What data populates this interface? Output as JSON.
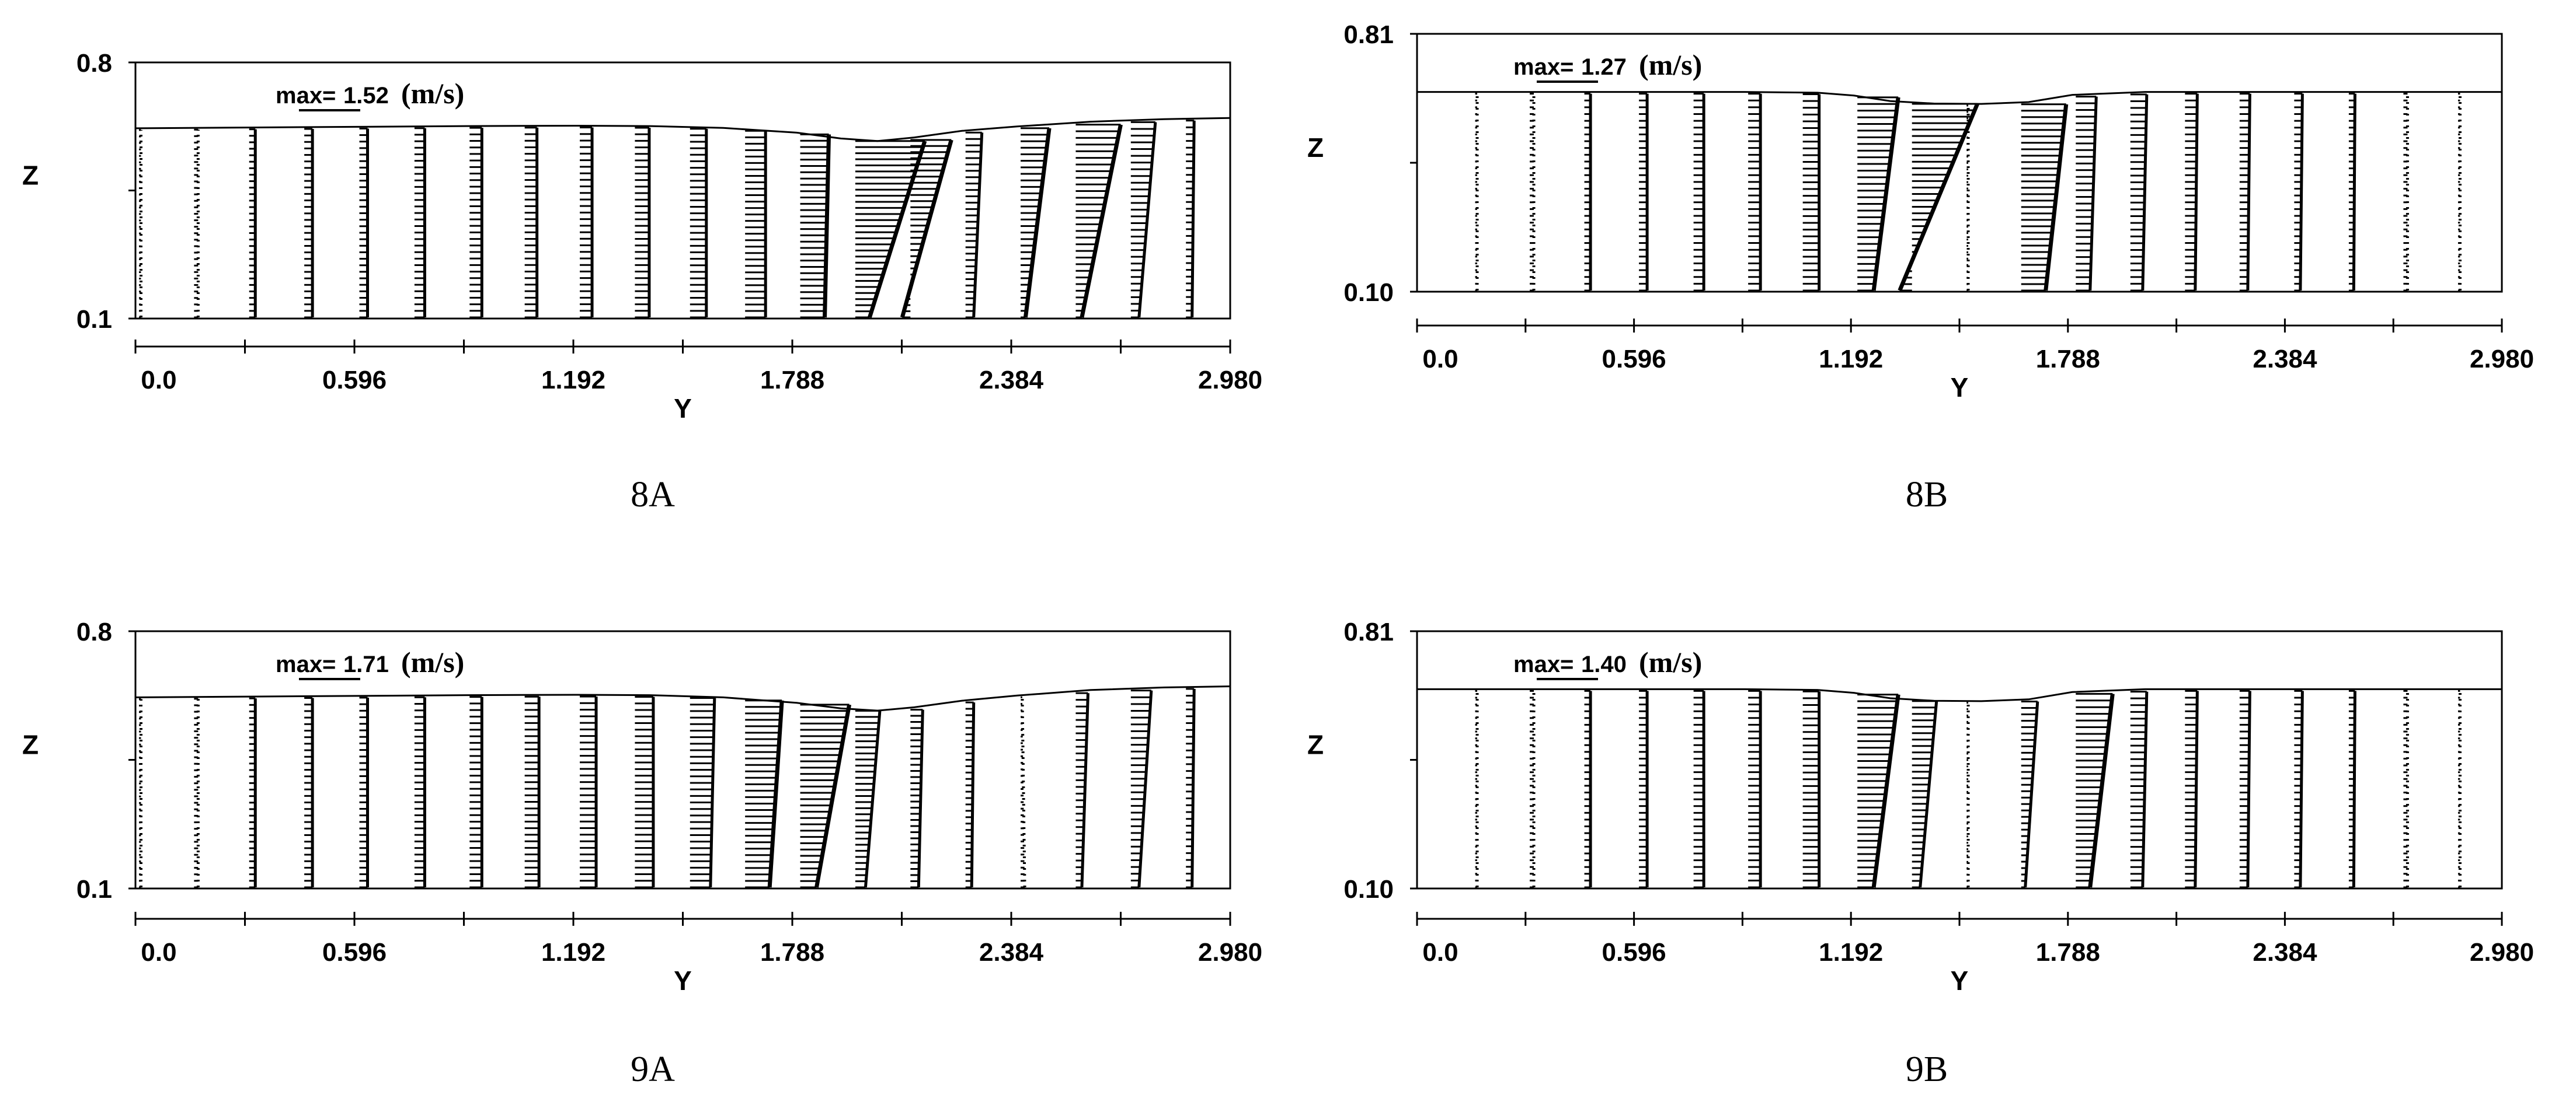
{
  "chart_data": [
    {
      "type": "vector_field",
      "panel": "8A",
      "caption": "8A",
      "xlabel": "Y",
      "ylabel": "Z",
      "xlim": [
        0.0,
        2.98
      ],
      "ylim": [
        0.1,
        0.8
      ],
      "xticks": [
        "0.0",
        "0.596",
        "1.192",
        "1.788",
        "2.384",
        "2.980"
      ],
      "yticks": [
        "0.8",
        "0.1"
      ],
      "reference_vector": {
        "prefix": "max=",
        "value": "1.52",
        "unit": "(m/s)"
      },
      "free_surface": {
        "y": [
          0.0,
          0.3,
          0.6,
          0.9,
          1.2,
          1.4,
          1.6,
          1.8,
          1.92,
          2.02,
          2.12,
          2.25,
          2.4,
          2.6,
          2.8,
          2.98
        ],
        "z": [
          0.62,
          0.622,
          0.624,
          0.626,
          0.627,
          0.626,
          0.621,
          0.608,
          0.592,
          0.585,
          0.595,
          0.613,
          0.625,
          0.638,
          0.645,
          0.648
        ]
      },
      "velocity_profiles": {
        "y": [
          0.0,
          0.15,
          0.3,
          0.45,
          0.6,
          0.75,
          0.9,
          1.05,
          1.2,
          1.35,
          1.5,
          1.65,
          1.8,
          1.95,
          2.1,
          2.25,
          2.4,
          2.55,
          2.7,
          2.85
        ],
        "u_top": [
          0.005,
          0.01,
          0.015,
          0.02,
          0.02,
          0.025,
          0.03,
          0.03,
          0.03,
          0.035,
          0.04,
          0.05,
          0.07,
          0.17,
          0.1,
          0.04,
          0.07,
          0.11,
          0.06,
          0.02
        ],
        "u_bottom": [
          0.005,
          0.01,
          0.015,
          0.02,
          0.02,
          0.025,
          0.03,
          0.03,
          0.03,
          0.035,
          0.04,
          0.05,
          0.06,
          0.035,
          -0.02,
          0.02,
          0.012,
          0.015,
          0.02,
          0.015
        ]
      }
    },
    {
      "type": "vector_field",
      "panel": "8B",
      "caption": "8B",
      "xlabel": "Y",
      "ylabel": "Z",
      "xlim": [
        0.0,
        2.98
      ],
      "ylim": [
        0.1,
        0.81
      ],
      "xticks": [
        "0.0",
        "0.596",
        "1.192",
        "1.788",
        "2.384",
        "2.980"
      ],
      "yticks": [
        "0.81",
        "0.10"
      ],
      "reference_vector": {
        "prefix": "max=",
        "value": "1.27",
        "unit": "(m/s)"
      },
      "free_surface": {
        "y": [
          0.0,
          0.3,
          0.6,
          0.9,
          1.1,
          1.2,
          1.3,
          1.42,
          1.55,
          1.68,
          1.8,
          2.0,
          2.3,
          2.6,
          2.98
        ],
        "z": [
          0.65,
          0.65,
          0.65,
          0.65,
          0.648,
          0.64,
          0.625,
          0.618,
          0.617,
          0.622,
          0.642,
          0.65,
          0.65,
          0.65,
          0.65
        ]
      },
      "velocity_profiles": {
        "y": [
          0.15,
          0.3,
          0.45,
          0.6,
          0.75,
          0.9,
          1.05,
          1.2,
          1.35,
          1.5,
          1.65,
          1.8,
          1.95,
          2.1,
          2.25,
          2.4,
          2.55,
          2.7,
          2.85
        ],
        "u_top": [
          0.005,
          0.01,
          0.015,
          0.02,
          0.025,
          0.03,
          0.04,
          0.1,
          0.16,
          0.004,
          0.11,
          0.05,
          0.04,
          0.03,
          0.025,
          0.02,
          0.015,
          0.01,
          0.005
        ],
        "u_bottom": [
          0.005,
          0.01,
          0.015,
          0.02,
          0.025,
          0.03,
          0.04,
          0.04,
          -0.03,
          0.004,
          0.06,
          0.035,
          0.03,
          0.025,
          0.02,
          0.015,
          0.012,
          0.01,
          0.005
        ]
      }
    },
    {
      "type": "vector_field",
      "panel": "9A",
      "caption": "9A",
      "xlabel": "Y",
      "ylabel": "Z",
      "xlim": [
        0.0,
        2.98
      ],
      "ylim": [
        0.1,
        0.8
      ],
      "xticks": [
        "0.0",
        "0.596",
        "1.192",
        "1.788",
        "2.384",
        "2.980"
      ],
      "yticks": [
        "0.8",
        "0.1"
      ],
      "reference_vector": {
        "prefix": "max=",
        "value": "1.71",
        "unit": "(m/s)"
      },
      "free_surface": {
        "y": [
          0.0,
          0.3,
          0.6,
          0.9,
          1.2,
          1.4,
          1.6,
          1.8,
          1.92,
          2.02,
          2.12,
          2.25,
          2.4,
          2.6,
          2.8,
          2.98
        ],
        "z": [
          0.62,
          0.622,
          0.624,
          0.626,
          0.627,
          0.626,
          0.62,
          0.605,
          0.59,
          0.584,
          0.593,
          0.611,
          0.625,
          0.64,
          0.647,
          0.65
        ]
      },
      "velocity_profiles": {
        "y": [
          0.0,
          0.15,
          0.3,
          0.45,
          0.6,
          0.75,
          0.9,
          1.05,
          1.2,
          1.35,
          1.5,
          1.65,
          1.8,
          1.95,
          2.1,
          2.25,
          2.4,
          2.55,
          2.7,
          2.85
        ],
        "u_top": [
          0.005,
          0.01,
          0.015,
          0.02,
          0.02,
          0.025,
          0.03,
          0.035,
          0.04,
          0.045,
          0.06,
          0.09,
          0.12,
          0.06,
          0.03,
          0.02,
          0.004,
          0.03,
          0.05,
          0.02
        ],
        "u_bottom": [
          0.005,
          0.01,
          0.015,
          0.02,
          0.02,
          0.025,
          0.03,
          0.035,
          0.04,
          0.045,
          0.05,
          0.06,
          0.04,
          0.025,
          0.02,
          0.015,
          0.01,
          0.015,
          0.02,
          0.015
        ]
      }
    },
    {
      "type": "vector_field",
      "panel": "9B",
      "caption": "9B",
      "xlabel": "Y",
      "ylabel": "Z",
      "xlim": [
        0.0,
        2.98
      ],
      "ylim": [
        0.1,
        0.81
      ],
      "xticks": [
        "0.0",
        "0.596",
        "1.192",
        "1.788",
        "2.384",
        "2.980"
      ],
      "yticks": [
        "0.81",
        "0.10"
      ],
      "reference_vector": {
        "prefix": "max=",
        "value": "1.40",
        "unit": "(m/s)"
      },
      "free_surface": {
        "y": [
          0.0,
          0.3,
          0.6,
          0.9,
          1.1,
          1.2,
          1.3,
          1.42,
          1.55,
          1.68,
          1.8,
          2.0,
          2.3,
          2.6,
          2.98
        ],
        "z": [
          0.65,
          0.65,
          0.65,
          0.65,
          0.648,
          0.64,
          0.625,
          0.618,
          0.617,
          0.622,
          0.642,
          0.65,
          0.65,
          0.65,
          0.65
        ]
      },
      "velocity_profiles": {
        "y": [
          0.15,
          0.3,
          0.45,
          0.6,
          0.75,
          0.9,
          1.05,
          1.2,
          1.35,
          1.5,
          1.65,
          1.8,
          1.95,
          2.1,
          2.25,
          2.4,
          2.55,
          2.7,
          2.85
        ],
        "u_top": [
          0.005,
          0.01,
          0.015,
          0.02,
          0.025,
          0.03,
          0.04,
          0.1,
          0.06,
          0.004,
          0.04,
          0.09,
          0.04,
          0.03,
          0.025,
          0.02,
          0.015,
          0.01,
          0.005
        ],
        "u_bottom": [
          0.005,
          0.01,
          0.015,
          0.02,
          0.025,
          0.03,
          0.04,
          0.04,
          0.02,
          0.004,
          0.01,
          0.035,
          0.03,
          0.025,
          0.02,
          0.015,
          0.012,
          0.01,
          0.005
        ]
      }
    }
  ]
}
